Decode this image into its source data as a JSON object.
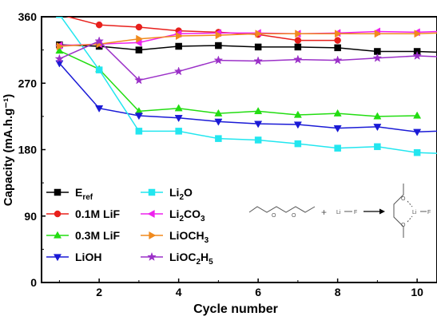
{
  "chart_data": {
    "type": "line",
    "xlabel": "Cycle number",
    "ylabel": "Capacity (mA.h.g⁻¹)",
    "xlim": [
      0.55,
      10.5
    ],
    "ylim": [
      0,
      360
    ],
    "x_ticks": [
      2,
      4,
      6,
      8,
      10
    ],
    "y_ticks": [
      0,
      90,
      180,
      270,
      360
    ],
    "grid": false,
    "legend_position": "bottom-left",
    "series": [
      {
        "name": "E_ref",
        "label_base": "E",
        "label_sub": "ref",
        "label_tail": "",
        "color": "#000000",
        "marker": "square",
        "x": [
          1,
          2,
          3,
          4,
          5,
          6,
          7,
          8,
          9,
          10,
          10.5
        ],
        "y": [
          322,
          320,
          315,
          320,
          321,
          319,
          319,
          318,
          313,
          313,
          312
        ]
      },
      {
        "name": "0.1M LiF",
        "label_base": "0.1M LiF",
        "label_sub": "",
        "label_tail": "",
        "color": "#e8201c",
        "marker": "circle",
        "x": [
          1,
          2,
          3,
          4,
          5,
          6,
          7,
          8
        ],
        "y": [
          363,
          349,
          346,
          341,
          339,
          336,
          328,
          328
        ]
      },
      {
        "name": "0.3M LiF",
        "label_base": "0.3M LiF",
        "label_sub": "",
        "label_tail": "",
        "color": "#22dd11",
        "marker": "triangle-up",
        "x": [
          1,
          2,
          3,
          4,
          5,
          6,
          7,
          8,
          9,
          10
        ],
        "y": [
          314,
          289,
          232,
          236,
          229,
          232,
          227,
          229,
          225,
          226
        ]
      },
      {
        "name": "LiOH",
        "label_base": "LiOH",
        "label_sub": "",
        "label_tail": "",
        "color": "#1a1ad6",
        "marker": "triangle-down",
        "x": [
          1,
          2,
          3,
          4,
          5,
          6,
          7,
          8,
          9,
          10,
          10.5
        ],
        "y": [
          297,
          236,
          226,
          223,
          218,
          215,
          214,
          209,
          211,
          204,
          205
        ]
      },
      {
        "name": "Li2O",
        "label_base": "Li",
        "label_sub": "2",
        "label_tail": "O",
        "color": "#22e6ef",
        "marker": "square",
        "x": [
          1,
          2,
          3,
          4,
          5,
          6,
          7,
          8,
          9,
          10,
          10.5
        ],
        "y": [
          363,
          288,
          205,
          205,
          195,
          193,
          188,
          182,
          184,
          176,
          175
        ]
      },
      {
        "name": "Li2CO3",
        "label_base": "Li",
        "label_sub": "2",
        "label_tail": "CO3",
        "color": "#ee22ee",
        "marker": "triangle-left",
        "x": [
          1,
          2,
          3,
          4,
          5,
          6,
          7,
          8,
          9,
          10,
          10.5
        ],
        "y": [
          321,
          323,
          325,
          337,
          338,
          338,
          337,
          338,
          340,
          339,
          340
        ]
      },
      {
        "name": "LiOCH3",
        "label_base": "LiOCH",
        "label_sub": "3",
        "label_tail": "",
        "color": "#f08a1e",
        "marker": "triangle-right",
        "x": [
          1,
          2,
          3,
          4,
          5,
          6,
          7,
          8,
          9,
          10,
          10.5
        ],
        "y": [
          320,
          323,
          330,
          334,
          335,
          337,
          337,
          337,
          337,
          337,
          338
        ]
      },
      {
        "name": "LiOC2H5",
        "label_base": "LiOC",
        "label_sub": "2",
        "label_tail": "H5",
        "color": "#9b30c8",
        "marker": "star",
        "x": [
          1,
          2,
          3,
          4,
          5,
          6,
          7,
          8,
          9,
          10,
          10.5
        ],
        "y": [
          303,
          327,
          274,
          286,
          301,
          300,
          302,
          301,
          304,
          307,
          306
        ]
      }
    ]
  },
  "inset": {
    "atom_o": "O",
    "atom_li": "Li",
    "atom_f": "F",
    "plus": "+"
  }
}
